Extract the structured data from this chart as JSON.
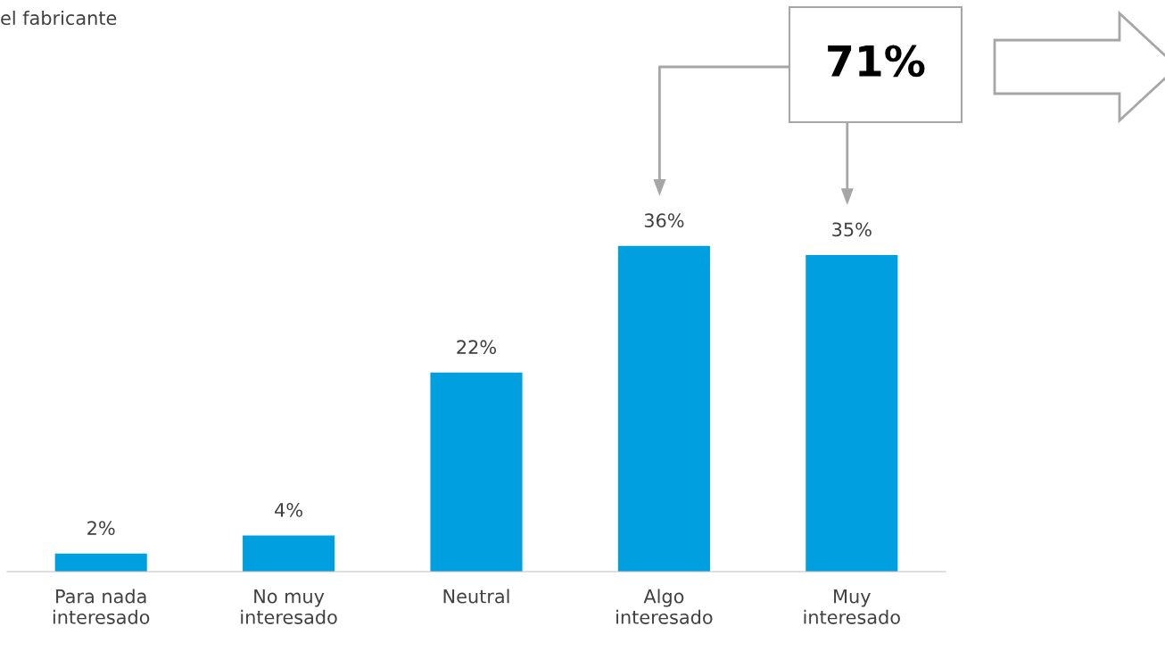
{
  "chart_data": {
    "type": "bar",
    "title": "el fabricante",
    "categories": [
      "Para nada\ninteresado",
      "No muy\ninteresado",
      "Neutral",
      "Algo\ninteresado",
      "Muy\ninteresado"
    ],
    "values": [
      2,
      4,
      22,
      36,
      35
    ],
    "color": "#009fdf",
    "data_labels": true,
    "value_labels": [
      "2%",
      "4%",
      "22%",
      "36%",
      "35%"
    ],
    "grid": false,
    "legend": false,
    "annotations": [
      "71%"
    ]
  }
}
